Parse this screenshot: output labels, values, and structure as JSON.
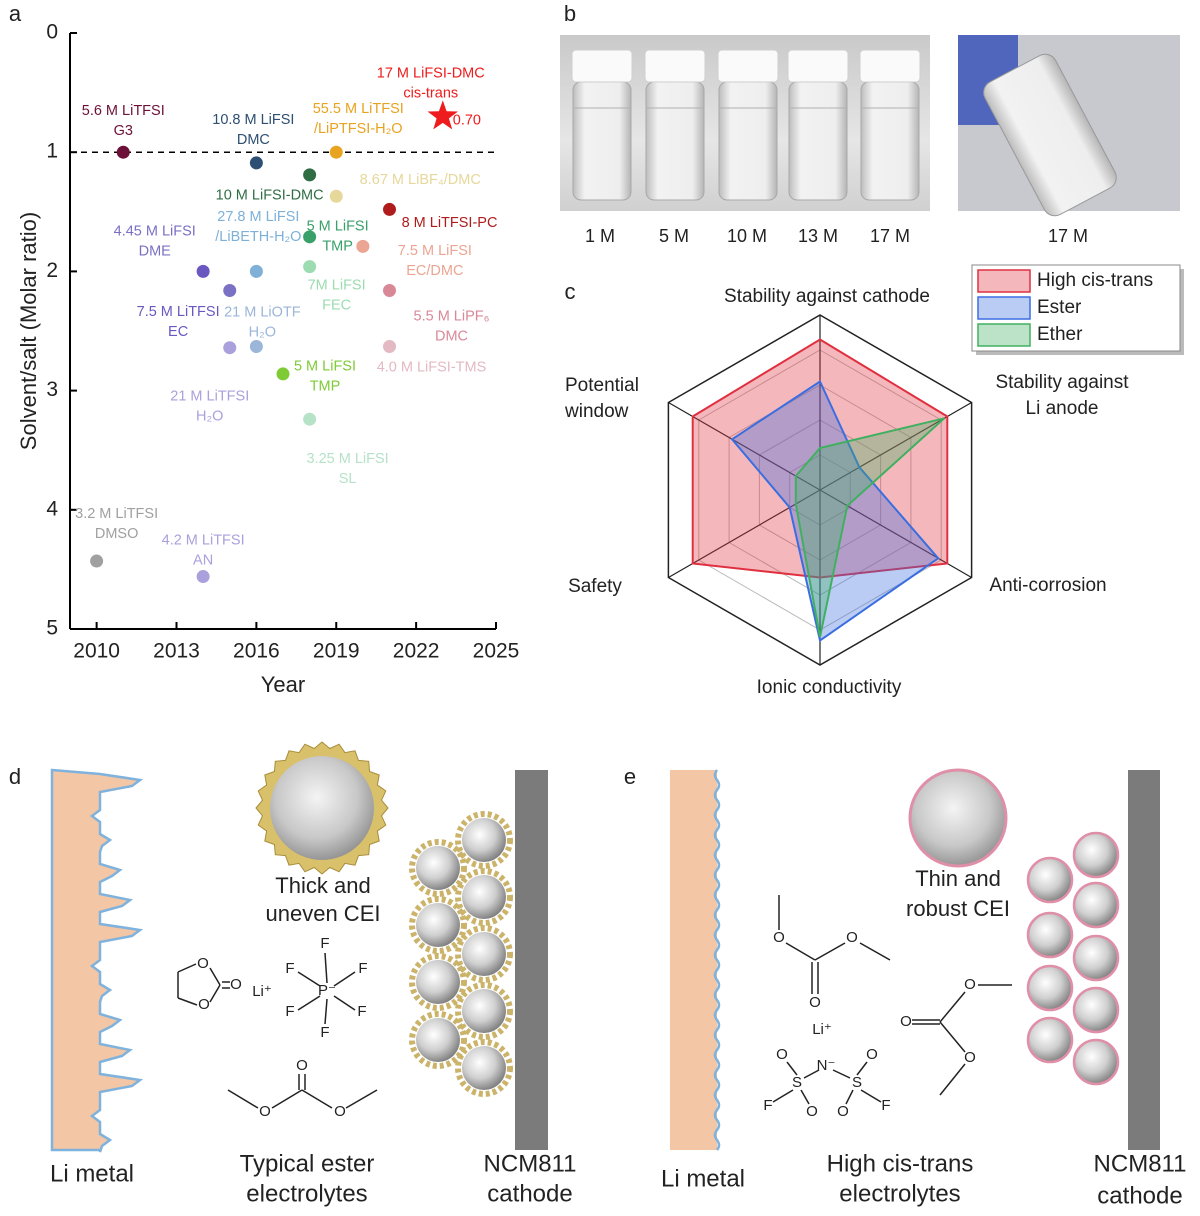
{
  "panel_labels": [
    "a",
    "b",
    "c",
    "d",
    "e"
  ],
  "chart_data": [
    {
      "type": "scatter",
      "xlabel": "Year",
      "ylabel": "Solvent/salt (Molar ratio)",
      "xlim": [
        2009,
        2025
      ],
      "xticks": [
        2010,
        2013,
        2016,
        2019,
        2022,
        2025
      ],
      "ylim": [
        0,
        5
      ],
      "yticks": [
        0,
        1,
        2,
        3,
        4,
        5
      ],
      "y_inverted": true,
      "reference_line": 1,
      "series": [
        {
          "name": [
            "5.6 M LiTFSI",
            "G3"
          ],
          "x": [
            2011
          ],
          "values": [
            1.0
          ],
          "color": "#6d1038"
        },
        {
          "name": [
            "10.8 M LiFSI",
            "DMC"
          ],
          "x": [
            2016
          ],
          "values": [
            1.09
          ],
          "color": "#2d4f73"
        },
        {
          "name": [
            "55.5 M LiTFSI",
            "/LiPTFSI-H₂O"
          ],
          "x": [
            2019
          ],
          "values": [
            1.0
          ],
          "color": "#e8a320"
        },
        {
          "name": [
            "17 M LiFSI-DMC",
            "cis-trans"
          ],
          "x": [
            2023
          ],
          "values": [
            0.7
          ],
          "value_labels": [
            "0.70"
          ],
          "marker": "star",
          "color": "#ee1c1c"
        },
        {
          "name": [
            "10 M LiFSI-DMC"
          ],
          "x": [
            2018
          ],
          "values": [
            1.19
          ],
          "color": "#2f6e45"
        },
        {
          "name": [
            "8.67 M LiBF₄/DMC"
          ],
          "x": [
            2019
          ],
          "values": [
            1.37
          ],
          "color": "#e6d79a"
        },
        {
          "name": [
            "8 M LiTFSI-PC"
          ],
          "x": [
            2021
          ],
          "values": [
            1.48
          ],
          "color": "#b01c1c"
        },
        {
          "name": [
            "27.8 M LiFSI",
            "/LiBETH-H₂O"
          ],
          "x": [
            2016
          ],
          "values": [
            2.0
          ],
          "color": "#7eb0d8"
        },
        {
          "name": [
            "5 M LiFSI",
            "TMP"
          ],
          "x": [
            2018
          ],
          "values": [
            1.71
          ],
          "color": "#3aa06a"
        },
        {
          "name": [
            "7.5 M LiFSI",
            "EC/DMC"
          ],
          "x": [
            2020
          ],
          "values": [
            1.79
          ],
          "color": "#eba592"
        },
        {
          "name": [
            "4.45 M LiFSI",
            "DME"
          ],
          "x": [
            2015
          ],
          "values": [
            2.16
          ],
          "color": "#7a70c4"
        },
        {
          "name": [
            "7.5 M LiTFSI",
            "EC"
          ],
          "x": [
            2014
          ],
          "values": [
            2.0
          ],
          "color": "#6a58c0"
        },
        {
          "name": [
            "7M LiFSI",
            "FEC"
          ],
          "x": [
            2018
          ],
          "values": [
            1.96
          ],
          "color": "#9cdcb0"
        },
        {
          "name": [
            "5.5 M LiPF₆",
            "DMC"
          ],
          "x": [
            2021
          ],
          "values": [
            2.16
          ],
          "color": "#d98898"
        },
        {
          "name": [
            "21 M LiOTF",
            "H₂O"
          ],
          "x": [
            2016
          ],
          "values": [
            2.63
          ],
          "color": "#9bb6d8"
        },
        {
          "name": [
            "21 M LiTFSI",
            "H₂O"
          ],
          "x": [
            2015
          ],
          "values": [
            2.64
          ],
          "color": "#aaa0dc"
        },
        {
          "name": [
            "4.0 M LiFSI-TMS"
          ],
          "x": [
            2021
          ],
          "values": [
            2.63
          ],
          "color": "#e3b9c3"
        },
        {
          "name": [
            "5 M LiFSI",
            "TMP"
          ],
          "x": [
            2017
          ],
          "values": [
            2.86
          ],
          "color": "#7ecb36"
        },
        {
          "name": [
            "3.25 M LiFSI",
            "SL"
          ],
          "x": [
            2018
          ],
          "values": [
            3.24
          ],
          "color": "#b6e2c8"
        },
        {
          "name": [
            "3.2 M LiTFSI",
            "DMSO"
          ],
          "x": [
            2010
          ],
          "values": [
            4.43
          ],
          "color": "#a0a0a0"
        },
        {
          "name": [
            "4.2 M LiTFSI",
            "AN"
          ],
          "x": [
            2014
          ],
          "values": [
            4.56
          ],
          "color": "#aaa0dc"
        }
      ]
    },
    {
      "type": "radar",
      "categories": [
        [
          "Stability against cathode"
        ],
        [
          "Stability against",
          "Li anode"
        ],
        [
          "Anti-corrosion"
        ],
        [
          "Ionic conductivity"
        ],
        [
          "Safety"
        ],
        [
          "Potential",
          "window"
        ]
      ],
      "rlim": [
        0,
        5
      ],
      "grid_rings": 5,
      "legend": "top-right",
      "series": [
        {
          "name": "High cis-trans",
          "color": "#e03040",
          "values": [
            4.3,
            4.2,
            4.2,
            2.5,
            4.2,
            4.2
          ]
        },
        {
          "name": "Ester",
          "color": "#3a6ee0",
          "values": [
            3.1,
            1.3,
            3.9,
            4.3,
            1.0,
            2.9
          ]
        },
        {
          "name": "Ether",
          "color": "#40b060",
          "values": [
            1.2,
            4.1,
            0.9,
            4.2,
            0.8,
            0.8
          ]
        }
      ]
    }
  ],
  "panel_b": {
    "labels": [
      "1 M",
      "5 M",
      "10 M",
      "13 M",
      "17 M",
      "17 M"
    ]
  },
  "panel_d": {
    "li_metal": "Li metal",
    "cei": [
      "Thick and",
      "uneven CEI"
    ],
    "electrolyte": [
      "Typical ester",
      "electrolytes"
    ],
    "cathode": [
      "NCM811",
      "cathode"
    ],
    "atoms": [
      "O",
      "O",
      "O",
      "F",
      "F",
      "F",
      "Li⁺",
      "P⁻",
      "F",
      "F",
      "F",
      "O",
      "O",
      "O"
    ]
  },
  "panel_e": {
    "li_metal": "Li metal",
    "cei": [
      "Thin and",
      "robust CEI"
    ],
    "electrolyte": [
      "High cis-trans",
      "electrolytes"
    ],
    "cathode": [
      "NCM811",
      "cathode"
    ],
    "atoms": [
      "O",
      "O",
      "O",
      "Li⁺",
      "O",
      "O",
      "N⁻",
      "S",
      "S",
      "F",
      "O",
      "O",
      "F",
      "O",
      "O",
      "O"
    ]
  }
}
